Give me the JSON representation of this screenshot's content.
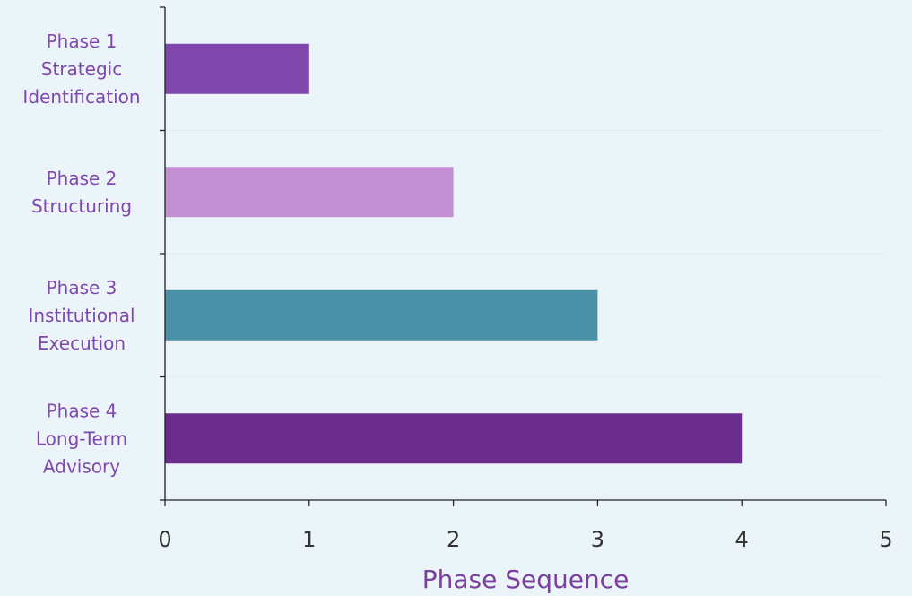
{
  "chart_data": {
    "type": "bar",
    "orientation": "horizontal",
    "categories": [
      [
        "Phase 1",
        "Strategic",
        "Identification"
      ],
      [
        "Phase 2",
        "Structuring"
      ],
      [
        "Phase 3",
        "Institutional",
        "Execution"
      ],
      [
        "Phase 4",
        "Long-Term",
        "Advisory"
      ]
    ],
    "values": [
      1,
      2,
      3,
      4
    ],
    "bar_colors": [
      "#8048AD",
      "#C490D4",
      "#4A91A8",
      "#6A2D8E"
    ],
    "title": "",
    "xlabel": "Phase Sequence",
    "ylabel": "",
    "xlim": [
      0,
      5
    ],
    "xticks": [
      0,
      1,
      2,
      3,
      4,
      5
    ],
    "grid": "x-major-subtle",
    "legend": "none",
    "colors": {
      "background": "#EAF4F9",
      "category_label": "#8048AD",
      "axis_label": "#7B3F9E",
      "tick_label": "#333333",
      "axis_line": "#222222",
      "grid": "#E2EDF0"
    }
  }
}
